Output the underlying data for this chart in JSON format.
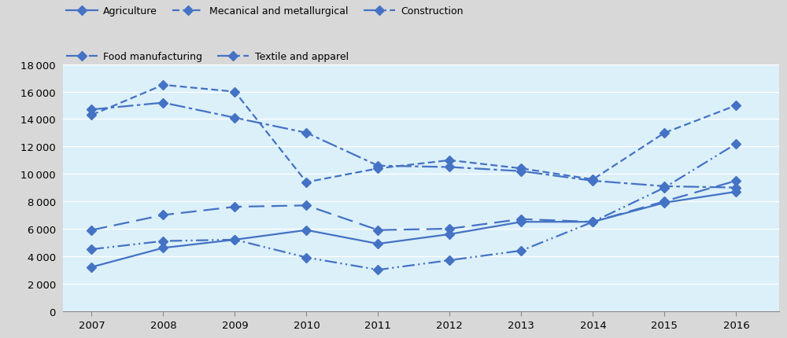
{
  "years": [
    2007,
    2008,
    2009,
    2010,
    2011,
    2012,
    2013,
    2014,
    2015,
    2016
  ],
  "series": {
    "Agriculture": [
      3200,
      4600,
      5200,
      5900,
      4900,
      5600,
      6500,
      6500,
      7900,
      8700
    ],
    "Food manufacturing": [
      5900,
      7000,
      7600,
      7700,
      5900,
      6000,
      6700,
      6500,
      8000,
      9500
    ],
    "Mechanical and metallurgical": [
      14300,
      16500,
      16000,
      9400,
      10400,
      11000,
      10400,
      9600,
      13000,
      15000
    ],
    "Textile and apparel": [
      14700,
      15200,
      14100,
      13000,
      10600,
      10500,
      10200,
      9500,
      9100,
      9000
    ],
    "Construction": [
      4500,
      5100,
      5200,
      3900,
      3000,
      3700,
      4400,
      6500,
      9000,
      12200
    ]
  },
  "line_color": "#4472C4",
  "bg_color": "#DCF0FA",
  "legend_bg": "#D8D8D8",
  "fig_bg": "#D8D8D8",
  "ylim": [
    0,
    18000
  ],
  "yticks": [
    0,
    2000,
    4000,
    6000,
    8000,
    10000,
    12000,
    14000,
    16000,
    18000
  ],
  "legend_labels": [
    "Agriculture",
    "Food manufacturing",
    "Mecanical and metallurgical",
    "Textile and apparel",
    "Construction"
  ],
  "legend_rows": [
    [
      "Agriculture",
      "Mecanical and metallurgical",
      "Construction"
    ],
    [
      "Food manufacturing",
      "Textile and apparel"
    ]
  ]
}
